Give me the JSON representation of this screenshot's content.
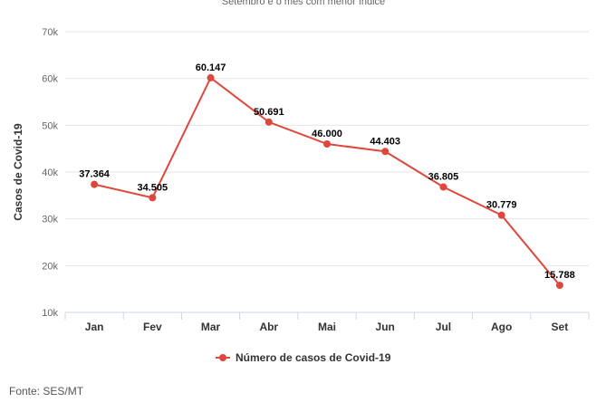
{
  "chart_data": {
    "type": "line",
    "subtitle": "Setembro é o mês com menor índice",
    "ylabel": "Casos de Covid-19",
    "xlabel": "",
    "categories": [
      "Jan",
      "Fev",
      "Mar",
      "Abr",
      "Mai",
      "Jun",
      "Jul",
      "Ago",
      "Set"
    ],
    "series": [
      {
        "name": "Número de casos de Covid-19",
        "values": [
          37364,
          34505,
          60147,
          50691,
          46000,
          44403,
          36805,
          30779,
          15788
        ],
        "labels": [
          "37.364",
          "34.505",
          "60.147",
          "50.691",
          "46.000",
          "44.403",
          "36.805",
          "30.779",
          "15.788"
        ],
        "color": "#e0473c"
      }
    ],
    "ylim": [
      10000,
      70000
    ],
    "yticks": [
      10000,
      20000,
      30000,
      40000,
      50000,
      60000,
      70000
    ],
    "ytick_labels": [
      "10k",
      "20k",
      "30k",
      "40k",
      "50k",
      "60k",
      "70k"
    ],
    "grid": true,
    "legend_position": "bottom"
  },
  "source": "Fonte: SES/MT"
}
